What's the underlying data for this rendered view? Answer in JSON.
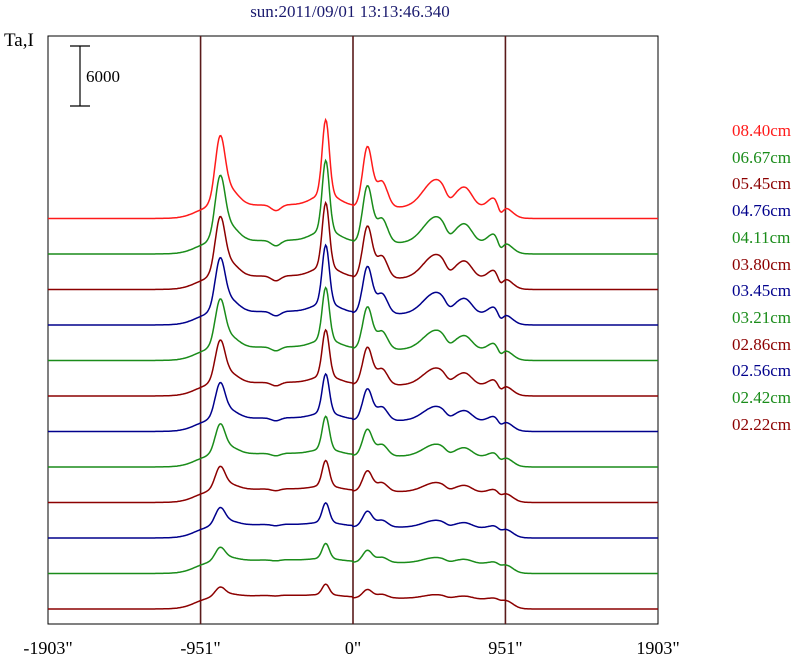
{
  "chart_data": {
    "type": "line",
    "title": "sun:2011/09/01 13:13:46.340",
    "ylabel": "Ta,I",
    "scale_bar_label": "6000",
    "xticks": [
      "-1903\"",
      "-951\"",
      "0\"",
      "951\"",
      "1903\""
    ],
    "xlim": [
      -1903,
      1903
    ],
    "vertical_markers": [
      -951,
      0,
      951
    ],
    "grid": false,
    "legend_position": "right",
    "series": [
      {
        "name": "08.40cm",
        "color": "#ff1a1a",
        "offset_rank": 11,
        "peak_scale": 1.0,
        "drift": 0.0
      },
      {
        "name": "06.67cm",
        "color": "#1a8c1a",
        "offset_rank": 10,
        "peak_scale": 0.94,
        "drift": 0.0
      },
      {
        "name": "05.45cm",
        "color": "#8c0000",
        "offset_rank": 9,
        "peak_scale": 0.86,
        "drift": 0.0
      },
      {
        "name": "04.76cm",
        "color": "#00008c",
        "offset_rank": 8,
        "peak_scale": 0.78,
        "drift": 0.35
      },
      {
        "name": "04.11cm",
        "color": "#1a8c1a",
        "offset_rank": 7,
        "peak_scale": 0.7,
        "drift": 0.4
      },
      {
        "name": "03.80cm",
        "color": "#8c0000",
        "offset_rank": 6,
        "peak_scale": 0.62,
        "drift": 0.55
      },
      {
        "name": "03.45cm",
        "color": "#00008c",
        "offset_rank": 5,
        "peak_scale": 0.52,
        "drift": 0.7
      },
      {
        "name": "03.21cm",
        "color": "#1a8c1a",
        "offset_rank": 4,
        "peak_scale": 0.44,
        "drift": 0.8
      },
      {
        "name": "02.86cm",
        "color": "#8c0000",
        "offset_rank": 3,
        "peak_scale": 0.34,
        "drift": 0.9
      },
      {
        "name": "02.56cm",
        "color": "#00008c",
        "offset_rank": 2,
        "peak_scale": 0.26,
        "drift": 1.0
      },
      {
        "name": "02.42cm",
        "color": "#1a8c1a",
        "offset_rank": 1,
        "peak_scale": 0.2,
        "drift": 1.0
      },
      {
        "name": "02.22cm",
        "color": "#8c0000",
        "offset_rank": 0,
        "peak_scale": 0.14,
        "drift": 1.0
      }
    ]
  }
}
